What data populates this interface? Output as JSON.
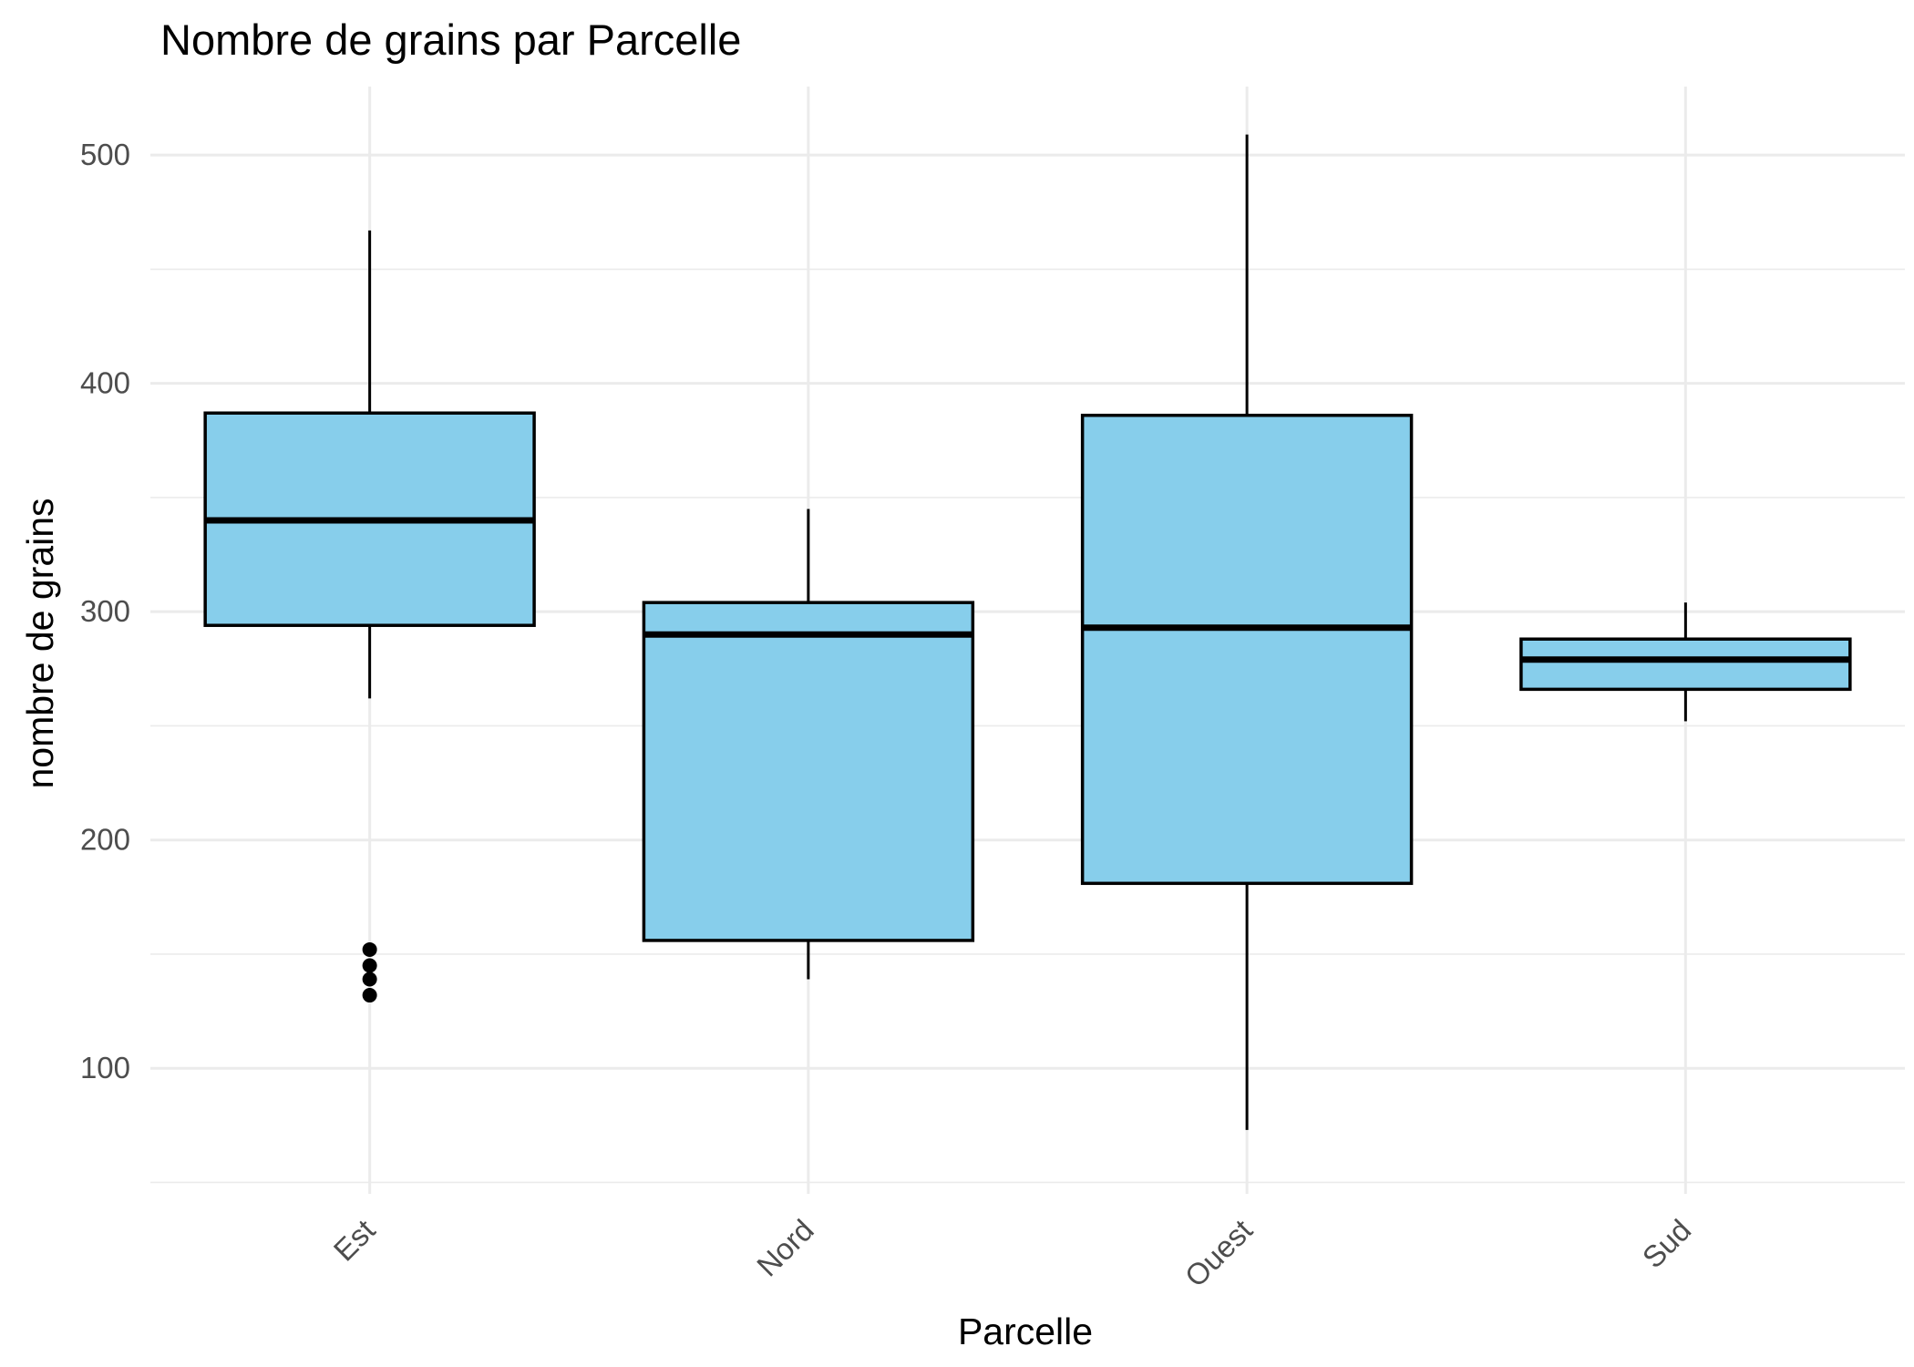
{
  "chart_data": {
    "type": "boxplot",
    "title": "Nombre de grains par Parcelle",
    "xlabel": "Parcelle",
    "ylabel": "nombre de grains",
    "categories": [
      "Est",
      "Nord",
      "Ouest",
      "Sud"
    ],
    "ylim": [
      45,
      530
    ],
    "yticks": [
      100,
      200,
      300,
      400,
      500
    ],
    "grid": true,
    "box_fill": "#87CEEB",
    "box_stroke": "#000000",
    "boxes": [
      {
        "category": "Est",
        "lower_whisker": 262,
        "q1": 294,
        "median": 340,
        "q3": 387,
        "upper_whisker": 467,
        "outliers": [
          152,
          145,
          139,
          132
        ]
      },
      {
        "category": "Nord",
        "lower_whisker": 139,
        "q1": 156,
        "median": 290,
        "q3": 304,
        "upper_whisker": 345,
        "outliers": []
      },
      {
        "category": "Ouest",
        "lower_whisker": 73,
        "q1": 181,
        "median": 293,
        "q3": 386,
        "upper_whisker": 509,
        "outliers": []
      },
      {
        "category": "Sud",
        "lower_whisker": 252,
        "q1": 266,
        "median": 279,
        "q3": 288,
        "upper_whisker": 304,
        "outliers": []
      }
    ]
  }
}
